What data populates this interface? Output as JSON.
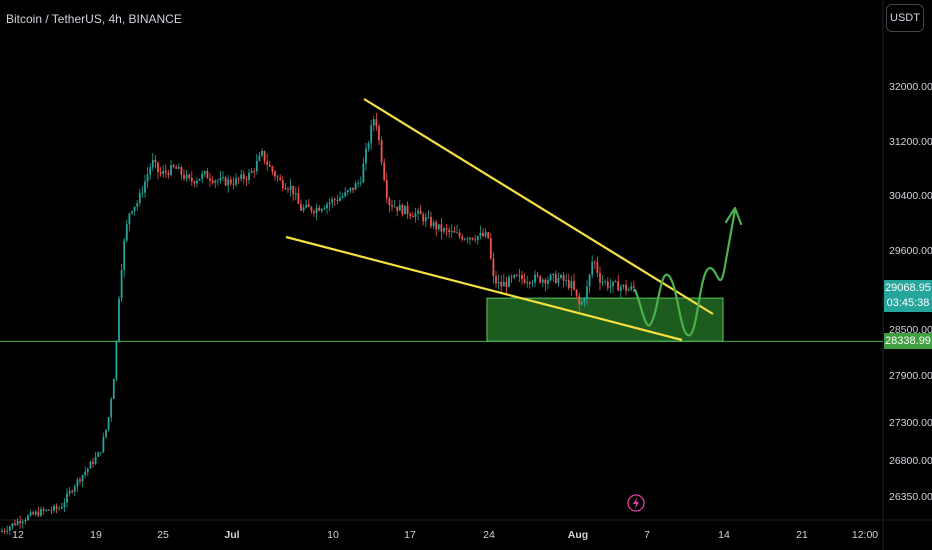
{
  "header": {
    "title": "Bitcoin / TetherUS, 4h, BINANCE",
    "currency": "USDT"
  },
  "price_axis": {
    "ticks": [
      "32000.00",
      "31200.00",
      "30400.00",
      "29600.00",
      "28500.00",
      "27900.00",
      "27300.00",
      "26800.00",
      "26350.00"
    ],
    "current_price": "29068.95",
    "countdown": "03:45:38",
    "level_price": "28338.99"
  },
  "colors": {
    "background": "#000000",
    "up": "#26a69a",
    "down": "#ef5350",
    "trendline": "#f5e042",
    "zone_fill": "#1e5b1e",
    "zone_border": "#4caf50",
    "level_line": "#4caf50",
    "projection": "#4caf50",
    "axis_text": "#d1d4dc"
  },
  "chart_data": {
    "type": "candlestick",
    "title": "Bitcoin / TetherUS, 4h, BINANCE",
    "x_ticks": [
      "12",
      "19",
      "25",
      "Jul",
      "10",
      "17",
      "24",
      "Aug",
      "7",
      "14",
      "21",
      "12:00"
    ],
    "y_ticks": [
      32000,
      31200,
      30400,
      29600,
      28500,
      27900,
      27300,
      26800,
      26350
    ],
    "ylim": [
      26000,
      32700
    ],
    "price_path": [
      [
        0,
        25900
      ],
      [
        20,
        26050
      ],
      [
        40,
        26150
      ],
      [
        60,
        26200
      ],
      [
        75,
        26500
      ],
      [
        88,
        26700
      ],
      [
        100,
        26900
      ],
      [
        108,
        27300
      ],
      [
        115,
        28000
      ],
      [
        120,
        29200
      ],
      [
        125,
        29800
      ],
      [
        130,
        30200
      ],
      [
        138,
        30300
      ],
      [
        145,
        30600
      ],
      [
        152,
        30900
      ],
      [
        160,
        30700
      ],
      [
        175,
        30800
      ],
      [
        190,
        30600
      ],
      [
        205,
        30700
      ],
      [
        220,
        30600
      ],
      [
        235,
        30600
      ],
      [
        250,
        30700
      ],
      [
        262,
        31000
      ],
      [
        270,
        30800
      ],
      [
        280,
        30600
      ],
      [
        292,
        30500
      ],
      [
        300,
        30200
      ],
      [
        315,
        30200
      ],
      [
        330,
        30300
      ],
      [
        345,
        30400
      ],
      [
        360,
        30600
      ],
      [
        370,
        31300
      ],
      [
        375,
        31600
      ],
      [
        382,
        30900
      ],
      [
        388,
        30300
      ],
      [
        400,
        30200
      ],
      [
        420,
        30100
      ],
      [
        440,
        29900
      ],
      [
        460,
        29800
      ],
      [
        475,
        29800
      ],
      [
        488,
        29800
      ],
      [
        493,
        29200
      ],
      [
        500,
        29100
      ],
      [
        515,
        29200
      ],
      [
        530,
        29200
      ],
      [
        545,
        29200
      ],
      [
        560,
        29200
      ],
      [
        572,
        29100
      ],
      [
        580,
        28800
      ],
      [
        588,
        29100
      ],
      [
        593,
        29500
      ],
      [
        600,
        29200
      ],
      [
        610,
        29100
      ],
      [
        620,
        29100
      ],
      [
        628,
        29050
      ],
      [
        635,
        29070
      ]
    ],
    "upper_trendline": [
      [
        31800,
        "start"
      ],
      [
        28800,
        "end"
      ]
    ],
    "lower_trendline": [
      [
        29700,
        "start"
      ],
      [
        28300,
        "end"
      ]
    ],
    "support_zone": [
      28340,
      28930
    ],
    "horizontal_level": 28338.99,
    "current_price": 29068.95
  },
  "icons": {
    "flash": "lightning-icon"
  }
}
